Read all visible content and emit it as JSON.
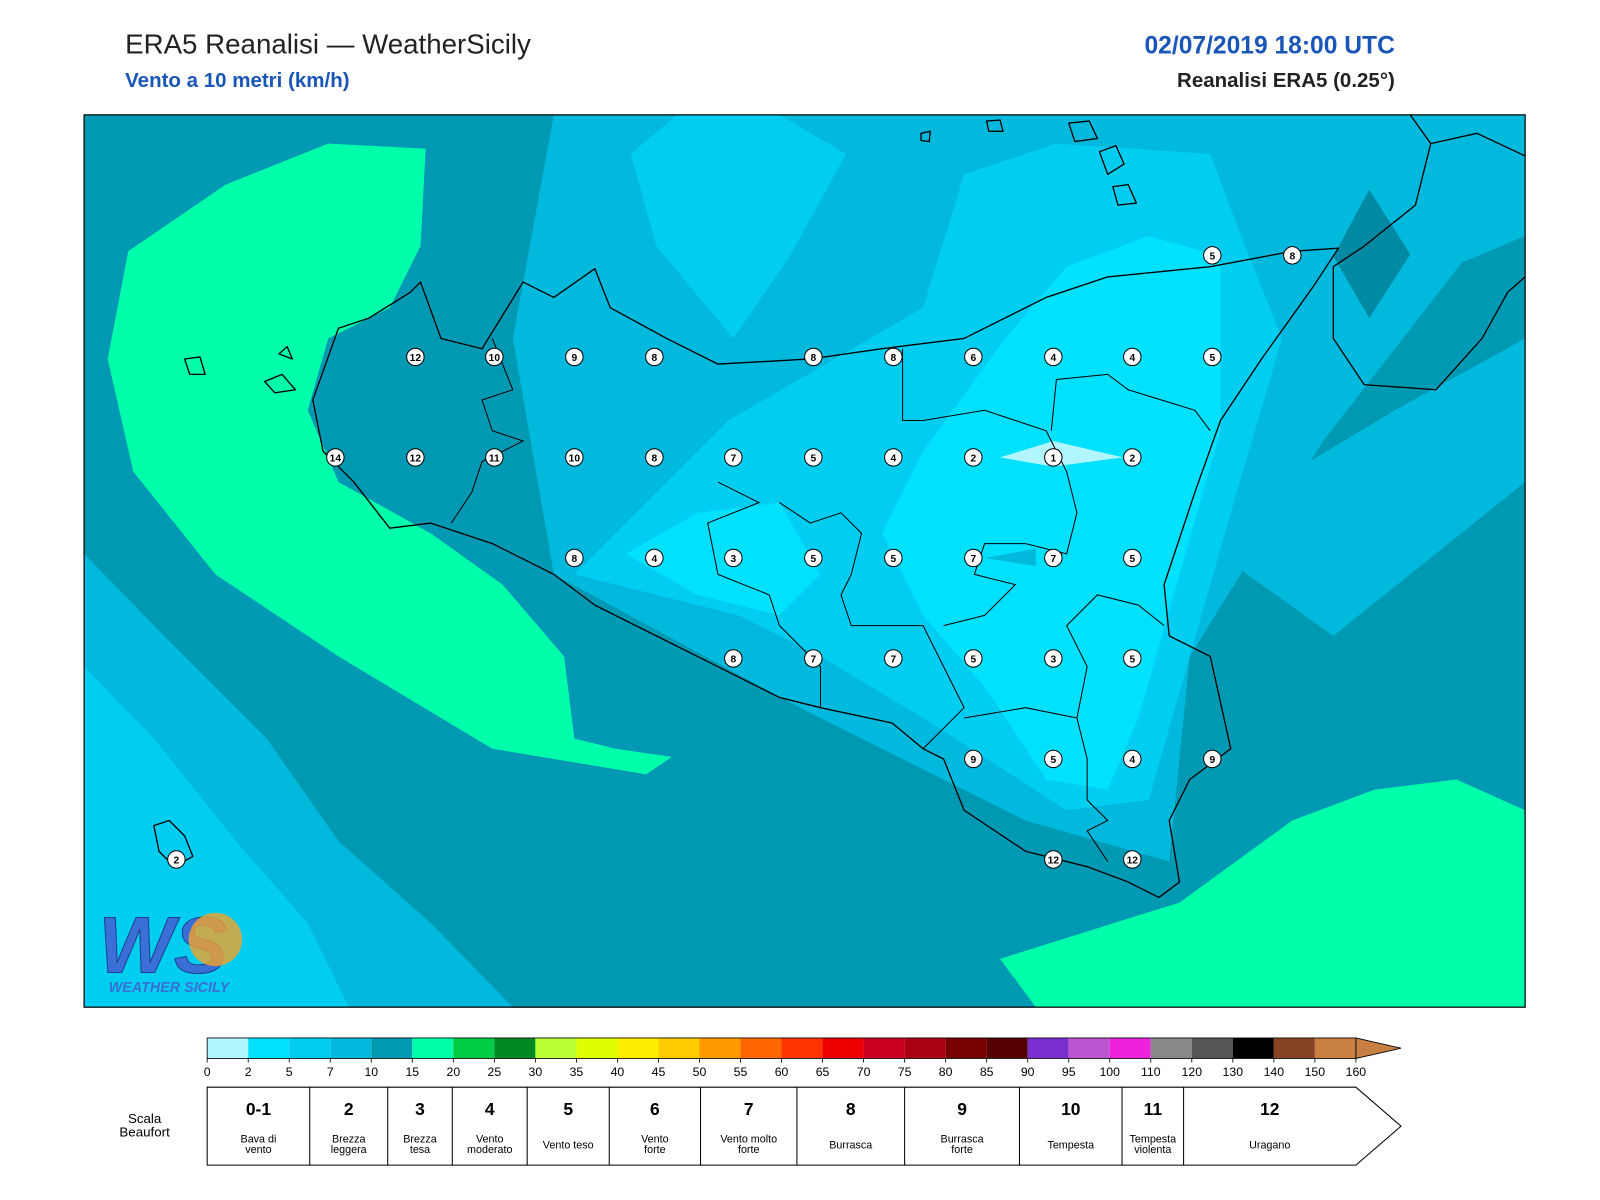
{
  "header": {
    "title": "ERA5 Reanalisi — WeatherSicily",
    "subtitle": "Vento a 10 metri (km/h)",
    "datetime": "02/07/2019 18:00 UTC",
    "source": "Reanalisi ERA5 (0.25°)"
  },
  "stations": [
    "5",
    "8",
    "12",
    "10",
    "9",
    "8",
    "8",
    "8",
    "6",
    "4",
    "4",
    "5",
    "14",
    "12",
    "11",
    "10",
    "8",
    "7",
    "5",
    "4",
    "2",
    "1",
    "2",
    "8",
    "4",
    "3",
    "5",
    "5",
    "7",
    "7",
    "5",
    "8",
    "7",
    "7",
    "5",
    "3",
    "5",
    "9",
    "5",
    "4",
    "9",
    "2",
    "12",
    "12"
  ],
  "logo": {
    "letters": "WS",
    "text": "WEATHER SICILY"
  },
  "colorbar": {
    "ticks": [
      "0",
      "2",
      "5",
      "7",
      "10",
      "15",
      "20",
      "25",
      "30",
      "35",
      "40",
      "45",
      "50",
      "55",
      "60",
      "65",
      "70",
      "75",
      "80",
      "85",
      "90",
      "95",
      "100",
      "110",
      "120",
      "130",
      "140",
      "150",
      "160"
    ],
    "colors": [
      "#b0f5ff",
      "#00e1ff",
      "#00cdf0",
      "#00b9dc",
      "#0099b4",
      "#00ffaa",
      "#00cc44",
      "#008822",
      "#b8ff33",
      "#ddff00",
      "#ffee00",
      "#ffcc00",
      "#ff9900",
      "#ff6600",
      "#ff3300",
      "#ee0000",
      "#cc0022",
      "#aa0011",
      "#770000",
      "#550000",
      "#7a2ed0",
      "#bb55d0",
      "#ee22dd",
      "#888888",
      "#555555",
      "#000000",
      "#884422",
      "#c87f44"
    ]
  },
  "beaufort": {
    "label": [
      "Scala",
      "Beaufort"
    ],
    "classes": [
      {
        "force": "0-1",
        "desc": [
          "Bava di",
          "vento"
        ]
      },
      {
        "force": "2",
        "desc": [
          "Brezza",
          "leggera"
        ]
      },
      {
        "force": "3",
        "desc": [
          "Brezza",
          "tesa"
        ]
      },
      {
        "force": "4",
        "desc": [
          "Vento",
          "moderato"
        ]
      },
      {
        "force": "5",
        "desc": [
          "Vento teso"
        ]
      },
      {
        "force": "6",
        "desc": [
          "Vento",
          "forte"
        ]
      },
      {
        "force": "7",
        "desc": [
          "Vento molto",
          "forte"
        ]
      },
      {
        "force": "8",
        "desc": [
          "Burrasca"
        ]
      },
      {
        "force": "9",
        "desc": [
          "Burrasca",
          "forte"
        ]
      },
      {
        "force": "10",
        "desc": [
          "Tempesta"
        ]
      },
      {
        "force": "11",
        "desc": [
          "Tempesta",
          "violenta"
        ]
      },
      {
        "force": "12",
        "desc": [
          "Uragano"
        ]
      }
    ]
  }
}
